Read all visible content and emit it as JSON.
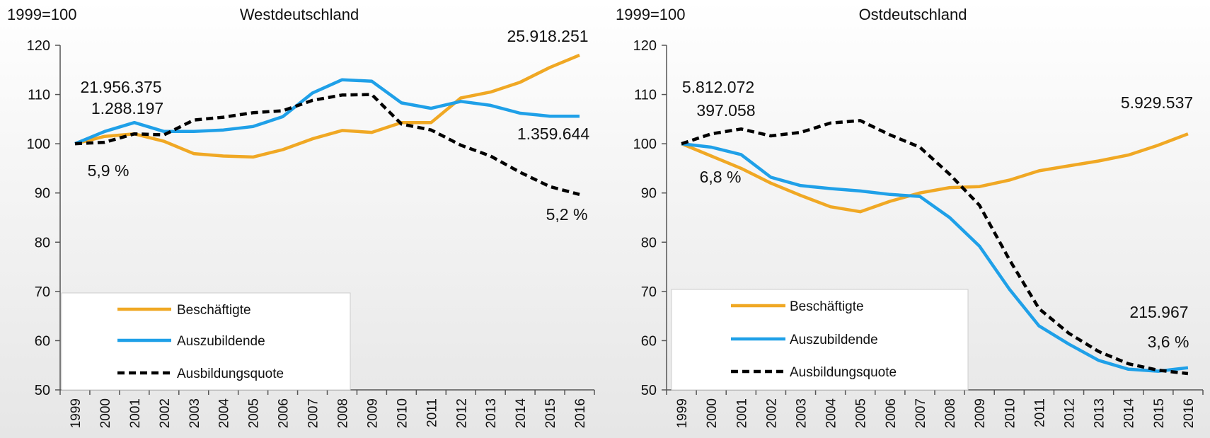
{
  "chart_data": [
    {
      "type": "line",
      "title": "Westdeutschland",
      "y_label": "1999=100",
      "categories": [
        "1999",
        "2000",
        "2001",
        "2002",
        "2003",
        "2004",
        "2005",
        "2006",
        "2007",
        "2008",
        "2009",
        "2010",
        "2011",
        "2012",
        "2013",
        "2014",
        "2015",
        "2016"
      ],
      "series": [
        {
          "name": "Beschäftigte",
          "color": "#f0a824",
          "dashed": false,
          "values": [
            100,
            101.5,
            102,
            100.5,
            98,
            97.5,
            97.3,
            98.8,
            101,
            102.7,
            102.3,
            104.3,
            104.3,
            109.3,
            110.5,
            112.5,
            115.5,
            118
          ]
        },
        {
          "name": "Auszubildende",
          "color": "#1fa0e8",
          "dashed": false,
          "values": [
            100,
            102.5,
            104.3,
            102.5,
            102.5,
            102.8,
            103.5,
            105.5,
            110.3,
            113,
            112.7,
            108.3,
            107.2,
            108.6,
            107.8,
            106.2,
            105.6,
            105.6
          ]
        },
        {
          "name": "Ausbildungsquote",
          "color": "#000000",
          "dashed": true,
          "values": [
            100,
            100.3,
            102,
            101.8,
            104.8,
            105.4,
            106.3,
            106.7,
            108.8,
            109.9,
            110,
            104,
            102.8,
            99.7,
            97.5,
            94.2,
            91.3,
            89.7
          ]
        }
      ],
      "ylim": [
        50,
        120
      ],
      "yticks": [
        50,
        60,
        70,
        80,
        90,
        100,
        110,
        120
      ],
      "legend": "lower left",
      "annotations": [
        "21.956.375",
        "1.288.197",
        "5,9 %",
        "25.918.251",
        "1.359.644",
        "5,2 %"
      ]
    },
    {
      "type": "line",
      "title": "Ostdeutschland",
      "y_label": "1999=100",
      "categories": [
        "1999",
        "2000",
        "2001",
        "2002",
        "2003",
        "2004",
        "2005",
        "2006",
        "2007",
        "2008",
        "2009",
        "2010",
        "2011",
        "2012",
        "2013",
        "2014",
        "2015",
        "2016"
      ],
      "series": [
        {
          "name": "Beschäftigte",
          "color": "#f0a824",
          "dashed": false,
          "values": [
            100,
            97.5,
            95,
            92,
            89.5,
            87.2,
            86.2,
            88.3,
            90,
            91.1,
            91.3,
            92.6,
            94.5,
            95.5,
            96.5,
            97.7,
            99.7,
            102
          ]
        },
        {
          "name": "Auszubildende",
          "color": "#1fa0e8",
          "dashed": false,
          "values": [
            100,
            99.3,
            97.8,
            93.2,
            91.5,
            90.9,
            90.4,
            89.7,
            89.3,
            85,
            79.2,
            70.5,
            63,
            59.3,
            56,
            54.2,
            53.8,
            54.5
          ]
        },
        {
          "name": "Ausbildungsquote",
          "color": "#000000",
          "dashed": true,
          "values": [
            100,
            102,
            103,
            101.6,
            102.3,
            104.2,
            104.7,
            101.8,
            99.3,
            93.8,
            87.5,
            76.5,
            66.5,
            61.5,
            57.8,
            55.3,
            54,
            53.3
          ]
        }
      ],
      "ylim": [
        50,
        120
      ],
      "yticks": [
        50,
        60,
        70,
        80,
        90,
        100,
        110,
        120
      ],
      "legend": "lower left",
      "annotations": [
        "5.812.072",
        "397.058",
        "6,8 %",
        "5.929.537",
        "215.967",
        "3,6 %"
      ]
    }
  ]
}
